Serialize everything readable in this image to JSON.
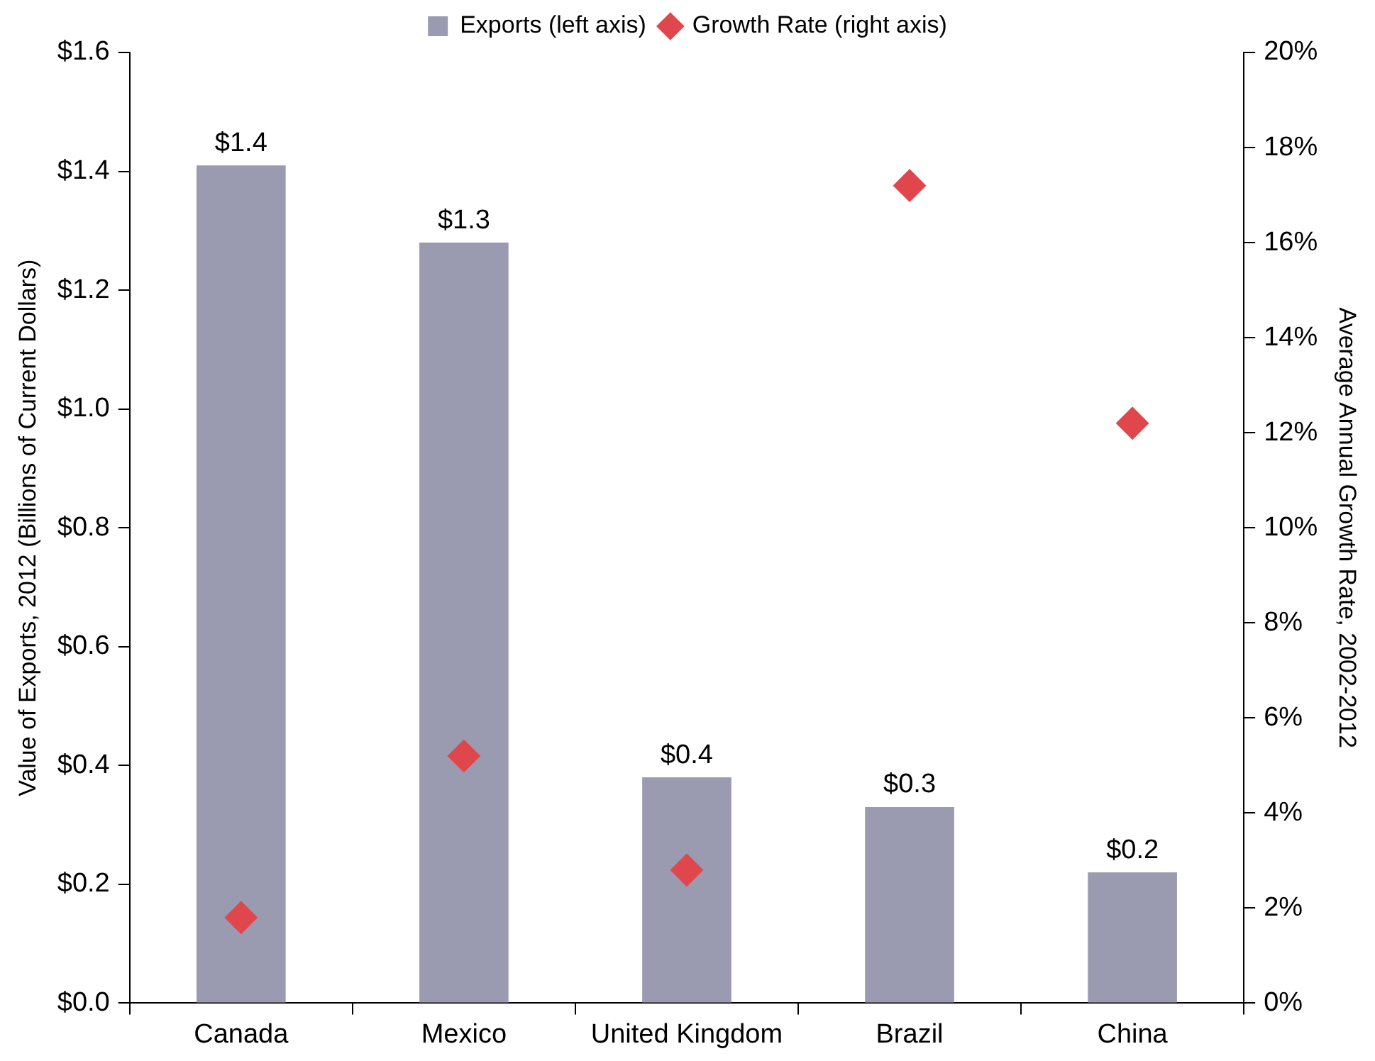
{
  "chart_data": {
    "type": "bar",
    "categories": [
      "Canada",
      "Mexico",
      "United Kingdom",
      "Brazil",
      "China"
    ],
    "ylabel": "Value of Exports, 2012 (Billions of Current Dollars)",
    "y2label": "Average Annual Growth Rate, 2002-2012",
    "series": [
      {
        "name": "Exports (left axis)",
        "color": "#9a9bb0",
        "values": [
          1.41,
          1.28,
          0.38,
          0.33,
          0.22
        ],
        "value_labels": [
          "$1.4",
          "$1.3",
          "$0.4",
          "$0.3",
          "$0.2"
        ]
      },
      {
        "name": "Growth Rate (right axis)",
        "type": "scatter",
        "axis": "y2",
        "color": "#e0474c",
        "values": [
          1.8,
          5.2,
          2.8,
          17.2,
          12.2
        ]
      }
    ],
    "ylim": [
      0,
      1.6
    ],
    "yticks": [
      {
        "value": 0,
        "label": "$0.0"
      },
      {
        "value": 0.2,
        "label": "$0.2"
      },
      {
        "value": 0.4,
        "label": "$0.4"
      },
      {
        "value": 0.6,
        "label": "$0.6"
      },
      {
        "value": 0.8,
        "label": "$0.8"
      },
      {
        "value": 1.0,
        "label": "$1.0"
      },
      {
        "value": 1.2,
        "label": "$1.2"
      },
      {
        "value": 1.4,
        "label": "$1.4"
      },
      {
        "value": 1.6,
        "label": "$1.6"
      }
    ],
    "y2lim": [
      0,
      20
    ],
    "y2ticks": [
      {
        "value": 0,
        "label": "0%"
      },
      {
        "value": 2,
        "label": "2%"
      },
      {
        "value": 4,
        "label": "4%"
      },
      {
        "value": 6,
        "label": "6%"
      },
      {
        "value": 8,
        "label": "8%"
      },
      {
        "value": 10,
        "label": "10%"
      },
      {
        "value": 12,
        "label": "12%"
      },
      {
        "value": 14,
        "label": "14%"
      },
      {
        "value": 16,
        "label": "16%"
      },
      {
        "value": 18,
        "label": "18%"
      },
      {
        "value": 20,
        "label": "20%"
      }
    ],
    "marker": "diamond",
    "legend": "top",
    "grid": false
  }
}
